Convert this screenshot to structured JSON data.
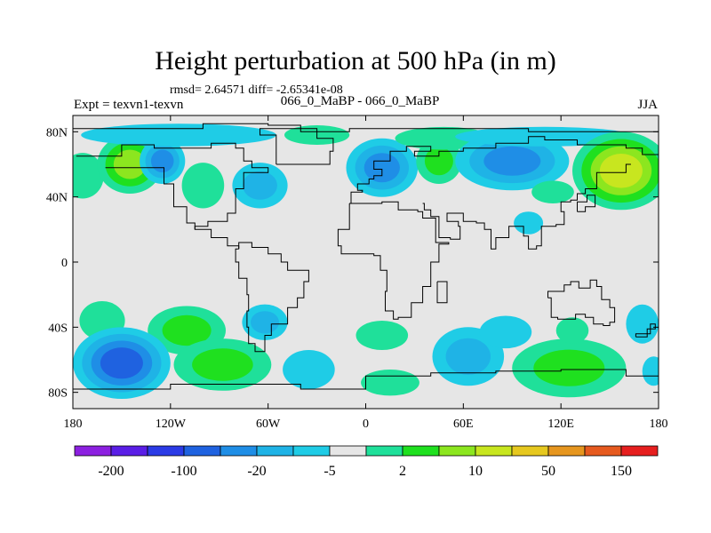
{
  "title": "Height perturbation at 500 hPa (in m)",
  "stats": "rmsd= 2.64571 diff= -2.65341e-08",
  "experiment": "Expt = texvn1-texvn",
  "subtitle": "066_0_MaBP - 066_0_MaBP",
  "season": "JJA",
  "map": {
    "lon_range": [
      -180,
      180
    ],
    "lat_range": [
      -90,
      90
    ],
    "background_color": "#e6e6e6",
    "y_ticks": [
      {
        "lat": 80,
        "label": "80N"
      },
      {
        "lat": 40,
        "label": "40N"
      },
      {
        "lat": 0,
        "label": "0"
      },
      {
        "lat": -40,
        "label": "40S"
      },
      {
        "lat": -80,
        "label": "80S"
      }
    ],
    "x_ticks": [
      {
        "lon": -180,
        "label": "180"
      },
      {
        "lon": -120,
        "label": "120W"
      },
      {
        "lon": -60,
        "label": "60W"
      },
      {
        "lon": 0,
        "label": "0"
      },
      {
        "lon": 60,
        "label": "60E"
      },
      {
        "lon": 120,
        "label": "120E"
      },
      {
        "lon": 180,
        "label": "180"
      }
    ]
  },
  "colorbar": {
    "colors": [
      "#8c20e0",
      "#5a1ee6",
      "#2b3be6",
      "#1f62e0",
      "#1f8ee6",
      "#1fb3e6",
      "#1fcce6",
      "#e6e6e6",
      "#1fe09a",
      "#1fe01f",
      "#8ce61f",
      "#c8e61f",
      "#e6c81f",
      "#e6961f",
      "#e65a1f",
      "#e61f1f"
    ],
    "labels": [
      {
        "boundary": 1,
        "text": "-200"
      },
      {
        "boundary": 3,
        "text": "-100"
      },
      {
        "boundary": 5,
        "text": "-20"
      },
      {
        "boundary": 7,
        "text": "-5"
      },
      {
        "boundary": 9,
        "text": "2"
      },
      {
        "boundary": 11,
        "text": "10"
      },
      {
        "boundary": 13,
        "text": "50"
      },
      {
        "boundary": 15,
        "text": "150"
      }
    ]
  },
  "contour_blobs": [
    {
      "lon": -174,
      "lat": 53,
      "rlon": 13,
      "rlat": 14,
      "levels": [
        "#1fe09a"
      ]
    },
    {
      "lon": -145,
      "lat": 60,
      "rlon": 20,
      "rlat": 18,
      "levels": [
        "#1fe09a",
        "#1fe01f",
        "#8ce61f"
      ]
    },
    {
      "lon": -125,
      "lat": 62,
      "rlon": 14,
      "rlat": 14,
      "levels": [
        "#1fcce6",
        "#1fb3e6",
        "#1f8ee6"
      ]
    },
    {
      "lon": -100,
      "lat": 47,
      "rlon": 13,
      "rlat": 14,
      "levels": [
        "#1fe09a"
      ]
    },
    {
      "lon": -65,
      "lat": 47,
      "rlon": 17,
      "rlat": 14,
      "levels": [
        "#1fcce6",
        "#1fb3e6"
      ]
    },
    {
      "lon": -115,
      "lat": 78,
      "rlon": 60,
      "rlat": 7,
      "levels": [
        "#1fcce6"
      ]
    },
    {
      "lon": -30,
      "lat": 78,
      "rlon": 20,
      "rlat": 6,
      "levels": [
        "#1fe09a"
      ]
    },
    {
      "lon": 10,
      "lat": 58,
      "rlon": 22,
      "rlat": 18,
      "levels": [
        "#1fcce6",
        "#1fb3e6",
        "#1f8ee6"
      ]
    },
    {
      "lon": 45,
      "lat": 62,
      "rlon": 14,
      "rlat": 14,
      "levels": [
        "#1fe09a",
        "#1fe01f"
      ]
    },
    {
      "lon": 48,
      "lat": 76,
      "rlon": 30,
      "rlat": 7,
      "levels": [
        "#1fe09a"
      ]
    },
    {
      "lon": 90,
      "lat": 62,
      "rlon": 35,
      "rlat": 18,
      "levels": [
        "#1fcce6",
        "#1fb3e6",
        "#1f8ee6"
      ]
    },
    {
      "lon": 110,
      "lat": 77,
      "rlon": 55,
      "rlat": 6,
      "levels": [
        "#1fcce6"
      ]
    },
    {
      "lon": 157,
      "lat": 56,
      "rlon": 30,
      "rlat": 24,
      "levels": [
        "#1fe09a",
        "#1fe01f",
        "#8ce61f",
        "#c8e61f"
      ]
    },
    {
      "lon": 100,
      "lat": 24,
      "rlon": 9,
      "rlat": 7,
      "levels": [
        "#1fcce6"
      ]
    },
    {
      "lon": 115,
      "lat": 43,
      "rlon": 13,
      "rlat": 7,
      "levels": [
        "#1fe09a"
      ]
    },
    {
      "lon": -162,
      "lat": -36,
      "rlon": 14,
      "rlat": 12,
      "levels": [
        "#1fe09a"
      ]
    },
    {
      "lon": -110,
      "lat": -42,
      "rlon": 24,
      "rlat": 15,
      "levels": [
        "#1fe09a",
        "#1fe01f"
      ]
    },
    {
      "lon": -62,
      "lat": -37,
      "rlon": 14,
      "rlat": 11,
      "levels": [
        "#1fcce6",
        "#1fb3e6"
      ]
    },
    {
      "lon": -150,
      "lat": -62,
      "rlon": 30,
      "rlat": 22,
      "levels": [
        "#1fcce6",
        "#1fb3e6",
        "#1f8ee6",
        "#1f62e0"
      ]
    },
    {
      "lon": -88,
      "lat": -63,
      "rlon": 30,
      "rlat": 16,
      "levels": [
        "#1fe09a",
        "#1fe01f"
      ]
    },
    {
      "lon": -35,
      "lat": -66,
      "rlon": 16,
      "rlat": 12,
      "levels": [
        "#1fcce6"
      ]
    },
    {
      "lon": 10,
      "lat": -45,
      "rlon": 16,
      "rlat": 9,
      "levels": [
        "#1fe09a"
      ]
    },
    {
      "lon": 15,
      "lat": -74,
      "rlon": 18,
      "rlat": 8,
      "levels": [
        "#1fe09a"
      ]
    },
    {
      "lon": 63,
      "lat": -58,
      "rlon": 22,
      "rlat": 18,
      "levels": [
        "#1fcce6",
        "#1fb3e6"
      ]
    },
    {
      "lon": 86,
      "lat": -43,
      "rlon": 16,
      "rlat": 10,
      "levels": [
        "#1fcce6"
      ]
    },
    {
      "lon": 125,
      "lat": -65,
      "rlon": 35,
      "rlat": 18,
      "levels": [
        "#1fe09a",
        "#1fe01f"
      ]
    },
    {
      "lon": 127,
      "lat": -42,
      "rlon": 10,
      "rlat": 8,
      "levels": [
        "#1fe09a"
      ]
    },
    {
      "lon": 170,
      "lat": -38,
      "rlon": 10,
      "rlat": 12,
      "levels": [
        "#1fcce6"
      ]
    },
    {
      "lon": 177,
      "lat": -67,
      "rlon": 7,
      "rlat": 9,
      "levels": [
        "#1fcce6"
      ]
    }
  ],
  "coastlines": [
    [
      [
        -180,
        82
      ],
      [
        -100,
        85
      ],
      [
        -60,
        84
      ],
      [
        -40,
        80
      ],
      [
        -10,
        82
      ],
      [
        40,
        82
      ],
      [
        100,
        80
      ],
      [
        180,
        82
      ]
    ],
    [
      [
        -178,
        65
      ],
      [
        -150,
        72
      ],
      [
        -130,
        70
      ],
      [
        -95,
        73
      ],
      [
        -80,
        70
      ],
      [
        -75,
        62
      ],
      [
        -70,
        58
      ],
      [
        -60,
        55
      ],
      [
        -75,
        45
      ],
      [
        -80,
        30
      ],
      [
        -85,
        25
      ],
      [
        -97,
        22
      ],
      [
        -105,
        20
      ],
      [
        -95,
        15
      ],
      [
        -85,
        10
      ],
      [
        -78,
        8
      ]
    ],
    [
      [
        -160,
        58
      ],
      [
        -135,
        58
      ],
      [
        -124,
        48
      ],
      [
        -118,
        34
      ],
      [
        -110,
        24
      ],
      [
        -105,
        20
      ]
    ],
    [
      [
        -78,
        8
      ],
      [
        -80,
        0
      ],
      [
        -78,
        -10
      ],
      [
        -73,
        -20
      ],
      [
        -72,
        -30
      ],
      [
        -73,
        -40
      ],
      [
        -72,
        -50
      ],
      [
        -68,
        -55
      ],
      [
        -65,
        -55
      ],
      [
        -62,
        -45
      ],
      [
        -58,
        -38
      ],
      [
        -48,
        -28
      ],
      [
        -42,
        -22
      ],
      [
        -38,
        -12
      ],
      [
        -35,
        -5
      ],
      [
        -48,
        0
      ],
      [
        -52,
        5
      ],
      [
        -60,
        9
      ],
      [
        -70,
        12
      ],
      [
        -78,
        8
      ]
    ],
    [
      [
        -55,
        60
      ],
      [
        -40,
        60
      ],
      [
        -22,
        68
      ],
      [
        -20,
        76
      ],
      [
        -30,
        82
      ],
      [
        -55,
        82
      ],
      [
        -65,
        78
      ],
      [
        -55,
        60
      ]
    ],
    [
      [
        -10,
        36
      ],
      [
        -5,
        36
      ],
      [
        10,
        37
      ],
      [
        20,
        32
      ],
      [
        32,
        31
      ],
      [
        35,
        27
      ],
      [
        43,
        12
      ],
      [
        51,
        11
      ],
      [
        45,
        0
      ],
      [
        40,
        -10
      ],
      [
        40,
        -15
      ],
      [
        35,
        -25
      ],
      [
        28,
        -34
      ],
      [
        20,
        -35
      ],
      [
        17,
        -30
      ],
      [
        12,
        -18
      ],
      [
        13,
        -5
      ],
      [
        9,
        4
      ],
      [
        5,
        5
      ],
      [
        -5,
        5
      ],
      [
        -15,
        10
      ],
      [
        -17,
        20
      ],
      [
        -10,
        30
      ],
      [
        -10,
        36
      ]
    ],
    [
      [
        -10,
        36
      ],
      [
        -9,
        43
      ],
      [
        -2,
        44
      ],
      [
        -5,
        48
      ],
      [
        2,
        51
      ],
      [
        5,
        53
      ],
      [
        10,
        57
      ],
      [
        5,
        62
      ],
      [
        15,
        68
      ],
      [
        25,
        71
      ],
      [
        40,
        68
      ],
      [
        30,
        65
      ],
      [
        45,
        68
      ],
      [
        60,
        70
      ],
      [
        80,
        73
      ],
      [
        100,
        77
      ],
      [
        110,
        75
      ],
      [
        130,
        72
      ],
      [
        145,
        72
      ],
      [
        160,
        70
      ],
      [
        170,
        66
      ],
      [
        180,
        66
      ]
    ],
    [
      [
        35,
        36
      ],
      [
        36,
        32
      ],
      [
        40,
        28
      ],
      [
        45,
        15
      ],
      [
        52,
        14
      ],
      [
        58,
        22
      ],
      [
        57,
        25
      ],
      [
        50,
        30
      ],
      [
        60,
        25
      ],
      [
        68,
        24
      ],
      [
        73,
        20
      ],
      [
        77,
        8
      ],
      [
        80,
        15
      ],
      [
        88,
        22
      ],
      [
        92,
        22
      ],
      [
        97,
        16
      ],
      [
        100,
        8
      ],
      [
        105,
        10
      ],
      [
        108,
        15
      ],
      [
        108,
        22
      ],
      [
        117,
        23
      ],
      [
        122,
        31
      ],
      [
        120,
        37
      ],
      [
        126,
        38
      ],
      [
        130,
        42
      ],
      [
        135,
        45
      ],
      [
        142,
        55
      ],
      [
        160,
        60
      ],
      [
        163,
        60
      ]
    ],
    [
      [
        112,
        -22
      ],
      [
        114,
        -34
      ],
      [
        118,
        -35
      ],
      [
        129,
        -32
      ],
      [
        135,
        -34
      ],
      [
        140,
        -38
      ],
      [
        146,
        -39
      ],
      [
        150,
        -37
      ],
      [
        153,
        -28
      ],
      [
        150,
        -23
      ],
      [
        145,
        -15
      ],
      [
        142,
        -11
      ],
      [
        138,
        -16
      ],
      [
        131,
        -12
      ],
      [
        126,
        -14
      ],
      [
        122,
        -18
      ],
      [
        112,
        -22
      ]
    ],
    [
      [
        -180,
        -78
      ],
      [
        -120,
        -75
      ],
      [
        -60,
        -75
      ],
      [
        -40,
        -78
      ],
      [
        0,
        -70
      ],
      [
        40,
        -68
      ],
      [
        80,
        -67
      ],
      [
        120,
        -66
      ],
      [
        160,
        -70
      ],
      [
        180,
        -78
      ]
    ],
    [
      [
        44,
        -12
      ],
      [
        50,
        -15
      ],
      [
        50,
        -25
      ],
      [
        45,
        -25
      ],
      [
        44,
        -12
      ]
    ],
    [
      [
        130,
        31
      ],
      [
        135,
        34
      ],
      [
        141,
        37
      ],
      [
        141,
        41
      ],
      [
        136,
        37
      ],
      [
        130,
        31
      ]
    ],
    [
      [
        166,
        -46
      ],
      [
        173,
        -41
      ],
      [
        178,
        -38
      ],
      [
        175,
        -44
      ],
      [
        166,
        -46
      ]
    ]
  ]
}
